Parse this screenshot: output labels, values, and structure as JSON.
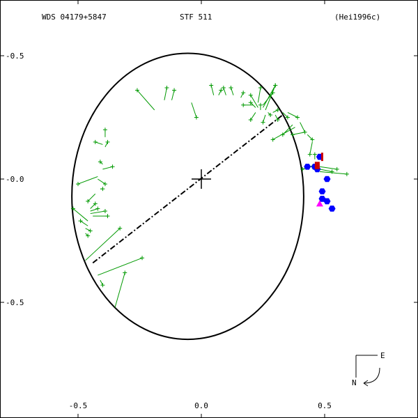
{
  "header": {
    "wds_id": "WDS 04179+5847",
    "discoverer": "STF 511",
    "reference": "(Hei1996c)"
  },
  "compass": {
    "east_label": "E",
    "north_label": "N"
  },
  "chart_data": {
    "type": "scatter",
    "title": "",
    "xlabel": "",
    "ylabel": "",
    "xlim": [
      -0.8,
      0.85
    ],
    "ylim": [
      -0.95,
      0.7
    ],
    "x_ticks": [
      {
        "value": -0.5,
        "label": "-0.5"
      },
      {
        "value": 0.0,
        "label": "0.0"
      },
      {
        "value": 0.5,
        "label": "0.5"
      }
    ],
    "y_ticks": [
      {
        "value": 0.5,
        "label": "-0.5"
      },
      {
        "value": 0.0,
        "label": "-0.0"
      },
      {
        "value": -0.5,
        "label": "-0.5"
      }
    ],
    "orbit": {
      "cx": -0.055,
      "cy": -0.07,
      "rx": 0.47,
      "ry": 0.58,
      "rotation_deg": 0
    },
    "primary": {
      "x": 0.0,
      "y": 0.0
    },
    "line_of_nodes": [
      [
        -0.44,
        -0.34
      ],
      [
        0.33,
        0.26
      ]
    ],
    "series": [
      {
        "marker": "plus",
        "color": "#009900",
        "points": [
          [
            -0.26,
            0.36,
            -0.19,
            0.28
          ],
          [
            -0.14,
            0.37,
            -0.15,
            0.32
          ],
          [
            -0.11,
            0.36,
            -0.12,
            0.32
          ],
          [
            -0.02,
            0.25,
            -0.04,
            0.31
          ],
          [
            0.04,
            0.38,
            0.05,
            0.34
          ],
          [
            0.08,
            0.36,
            0.07,
            0.34
          ],
          [
            0.09,
            0.37,
            0.1,
            0.34
          ],
          [
            0.12,
            0.37,
            0.13,
            0.34
          ],
          [
            0.17,
            0.35,
            0.16,
            0.33
          ],
          [
            0.24,
            0.37,
            0.23,
            0.31
          ],
          [
            0.29,
            0.35,
            0.25,
            0.3
          ],
          [
            0.3,
            0.38,
            0.25,
            0.29
          ],
          [
            0.3,
            0.38,
            0.26,
            0.28
          ],
          [
            0.24,
            0.3,
            0.24,
            0.28
          ],
          [
            0.2,
            0.34,
            0.23,
            0.29
          ],
          [
            0.2,
            0.31,
            0.22,
            0.29
          ],
          [
            0.17,
            0.3,
            0.21,
            0.3
          ],
          [
            0.28,
            0.26,
            0.27,
            0.27
          ],
          [
            0.31,
            0.28,
            0.29,
            0.27
          ],
          [
            0.31,
            0.24,
            0.3,
            0.26
          ],
          [
            0.2,
            0.24,
            0.22,
            0.27
          ],
          [
            0.25,
            0.23,
            0.26,
            0.26
          ],
          [
            0.33,
            0.18,
            0.37,
            0.22
          ],
          [
            0.29,
            0.16,
            0.38,
            0.21
          ],
          [
            0.39,
            0.25,
            0.35,
            0.27
          ],
          [
            0.35,
            0.25,
            0.33,
            0.27
          ],
          [
            0.42,
            0.19,
            0.4,
            0.23
          ],
          [
            0.37,
            0.18,
            0.42,
            0.19
          ],
          [
            0.45,
            0.16,
            0.43,
            0.18
          ],
          [
            0.44,
            0.1,
            0.45,
            0.15
          ],
          [
            0.46,
            0.1,
            0.46,
            0.08
          ],
          [
            0.41,
            0.04,
            0.47,
            0.06
          ],
          [
            0.53,
            0.03,
            0.48,
            0.04
          ],
          [
            0.59,
            0.02,
            0.48,
            0.03
          ],
          [
            0.55,
            0.04,
            0.48,
            0.05
          ],
          [
            0.45,
            0.05,
            0.47,
            0.05
          ],
          [
            -0.39,
            0.2,
            -0.39,
            0.17
          ],
          [
            -0.38,
            0.15,
            -0.39,
            0.13
          ],
          [
            -0.43,
            0.15,
            -0.4,
            0.14
          ],
          [
            -0.41,
            0.07,
            -0.4,
            0.06
          ],
          [
            -0.36,
            0.05,
            -0.4,
            0.04
          ],
          [
            -0.39,
            -0.02,
            -0.42,
            0.0
          ],
          [
            -0.4,
            -0.04,
            -0.41,
            -0.04
          ],
          [
            -0.5,
            -0.02,
            -0.42,
            0.01
          ],
          [
            -0.46,
            -0.09,
            -0.43,
            -0.06
          ],
          [
            -0.43,
            -0.1,
            -0.45,
            -0.12
          ],
          [
            -0.38,
            -0.15,
            -0.44,
            -0.15
          ],
          [
            -0.39,
            -0.13,
            -0.45,
            -0.14
          ],
          [
            -0.42,
            -0.12,
            -0.45,
            -0.13
          ],
          [
            -0.52,
            -0.12,
            -0.46,
            -0.17
          ],
          [
            -0.49,
            -0.17,
            -0.46,
            -0.19
          ],
          [
            -0.45,
            -0.21,
            -0.47,
            -0.2
          ],
          [
            -0.46,
            -0.23,
            -0.47,
            -0.22
          ],
          [
            -0.33,
            -0.2,
            -0.47,
            -0.33
          ],
          [
            -0.24,
            -0.32,
            -0.42,
            -0.39
          ],
          [
            -0.31,
            -0.38,
            -0.35,
            -0.52
          ],
          [
            -0.4,
            -0.43,
            -0.41,
            -0.41
          ]
        ]
      },
      {
        "marker": "hexagon",
        "color": "#0000ff",
        "points": [
          [
            0.48,
            0.09
          ],
          [
            0.43,
            0.05
          ],
          [
            0.47,
            0.04
          ],
          [
            0.46,
            0.05
          ],
          [
            0.51,
            0.0
          ],
          [
            0.49,
            -0.05
          ],
          [
            0.49,
            -0.08
          ],
          [
            0.51,
            -0.09
          ],
          [
            0.53,
            -0.12
          ]
        ]
      },
      {
        "marker": "square",
        "color": "#cc0000",
        "points": [
          [
            0.47,
            0.06
          ],
          [
            0.47,
            0.05
          ]
        ]
      },
      {
        "marker": "bar",
        "color": "#cc0000",
        "points": [
          [
            0.49,
            0.09
          ]
        ]
      },
      {
        "marker": "triangle",
        "color": "#ff00ff",
        "points": [
          [
            0.48,
            -0.1
          ]
        ]
      }
    ],
    "grid": false
  }
}
